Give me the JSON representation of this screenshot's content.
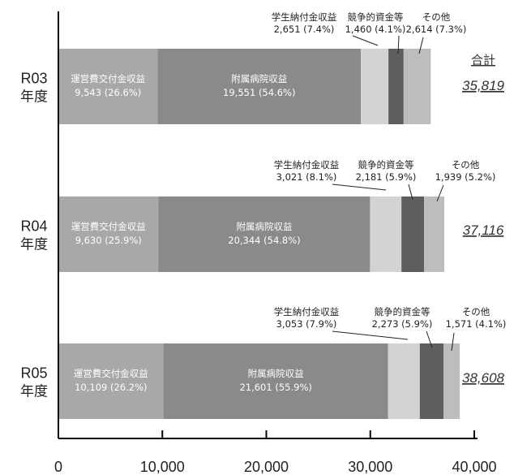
{
  "chart_data": {
    "type": "bar",
    "orientation": "horizontal",
    "stacked": true,
    "xlim": [
      0,
      40000
    ],
    "x_ticks": [
      "0",
      "10,000",
      "20,000",
      "30,000",
      "40,000"
    ],
    "x_tick_values": [
      0,
      10000,
      20000,
      30000,
      40000
    ],
    "total_header": "合計",
    "colors": {
      "subsidy": "#a8a8a8",
      "hospital": "#8a8a8a",
      "tuition": "#d3d3d3",
      "competitive": "#5e5e5e",
      "other": "#bdbdbd",
      "axis": "#000000"
    },
    "rows": [
      {
        "year_line1": "R03",
        "year_line2": "年度",
        "total": "35,819",
        "segments": [
          {
            "key": "subsidy",
            "name": "運営費交付金収益",
            "value": 9543,
            "label": "9,543 (26.6%)"
          },
          {
            "key": "hospital",
            "name": "附属病院収益",
            "value": 19551,
            "label": "19,551 (54.6%)"
          },
          {
            "key": "tuition",
            "name": "学生納付金収益",
            "value": 2651,
            "label": "2,651 (7.4%)"
          },
          {
            "key": "competitive",
            "name": "競争的資金等",
            "value": 1460,
            "label": "1,460 (4.1%)"
          },
          {
            "key": "other",
            "name": "その他",
            "value": 2614,
            "label": "2,614 (7.3%)"
          }
        ]
      },
      {
        "year_line1": "R04",
        "year_line2": "年度",
        "total": "37,116",
        "segments": [
          {
            "key": "subsidy",
            "name": "運営費交付金収益",
            "value": 9630,
            "label": "9,630 (25.9%)"
          },
          {
            "key": "hospital",
            "name": "附属病院収益",
            "value": 20344,
            "label": "20,344 (54.8%)"
          },
          {
            "key": "tuition",
            "name": "学生納付金収益",
            "value": 3021,
            "label": "3,021 (8.1%)"
          },
          {
            "key": "competitive",
            "name": "競争的資金等",
            "value": 2181,
            "label": "2,181 (5.9%)"
          },
          {
            "key": "other",
            "name": "その他",
            "value": 1939,
            "label": "1,939 (5.2%)"
          }
        ]
      },
      {
        "year_line1": "R05",
        "year_line2": "年度",
        "total": "38,608",
        "segments": [
          {
            "key": "subsidy",
            "name": "運営費交付金収益",
            "value": 10109,
            "label": "10,109 (26.2%)"
          },
          {
            "key": "hospital",
            "name": "附属病院収益",
            "value": 21601,
            "label": "21,601 (55.9%)"
          },
          {
            "key": "tuition",
            "name": "学生納付金収益",
            "value": 3053,
            "label": "3,053 (7.9%)"
          },
          {
            "key": "competitive",
            "name": "競争的資金等",
            "value": 2273,
            "label": "2,273 (5.9%)"
          },
          {
            "key": "other",
            "name": "その他",
            "value": 1571,
            "label": "1,571 (4.1%)"
          }
        ]
      }
    ]
  }
}
